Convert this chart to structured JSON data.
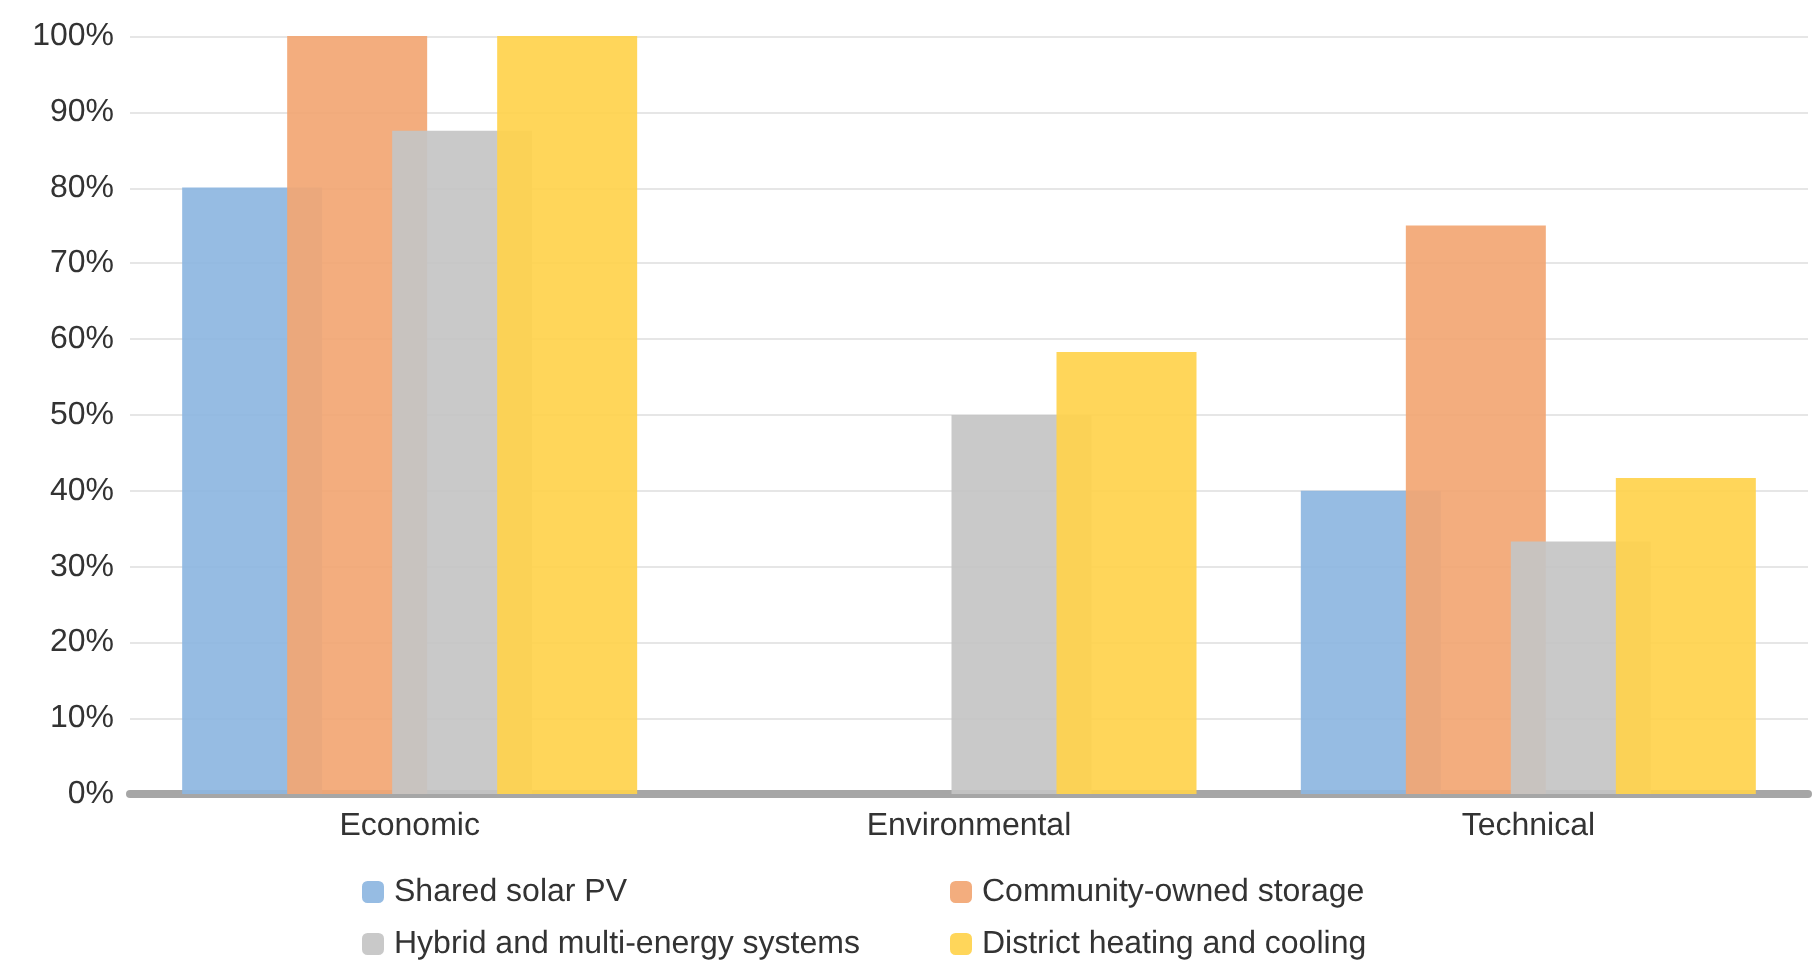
{
  "chart_data": {
    "type": "bar",
    "categories": [
      "Economic",
      "Environmental",
      "Technical"
    ],
    "series": [
      {
        "name": "Shared solar PV",
        "color": "#8db6e1",
        "values": [
          80,
          0,
          40
        ]
      },
      {
        "name": "Community-owned storage",
        "color": "#f2a673",
        "values": [
          100,
          0,
          75
        ]
      },
      {
        "name": "Hybrid and multi-energy systems",
        "color": "#c4c4c4",
        "values": [
          87.5,
          50,
          33.3
        ]
      },
      {
        "name": "District heating and cooling",
        "color": "#ffd24c",
        "values": [
          100,
          58.3,
          41.7
        ]
      }
    ],
    "ylim": [
      0,
      100
    ],
    "yticks": [
      {
        "value": 0,
        "label": "0%"
      },
      {
        "value": 10,
        "label": "10%"
      },
      {
        "value": 20,
        "label": "20%"
      },
      {
        "value": 30,
        "label": "30%"
      },
      {
        "value": 40,
        "label": "40%"
      },
      {
        "value": 50,
        "label": "50%"
      },
      {
        "value": 60,
        "label": "60%"
      },
      {
        "value": 70,
        "label": "70%"
      },
      {
        "value": 80,
        "label": "80%"
      },
      {
        "value": 90,
        "label": "90%"
      },
      {
        "value": 100,
        "label": "100%"
      }
    ],
    "grid": "y",
    "legend": "bottom"
  }
}
